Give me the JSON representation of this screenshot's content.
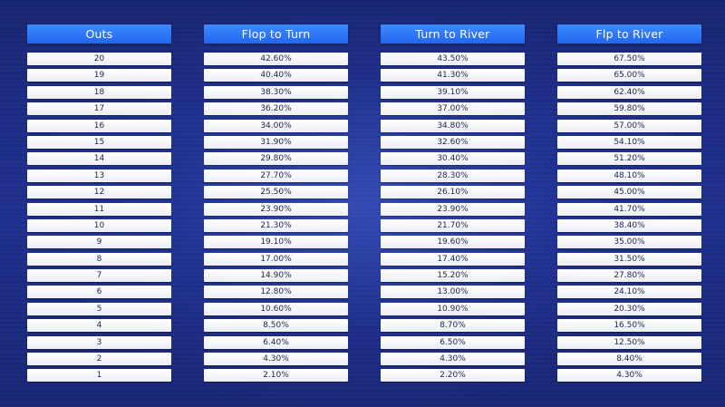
{
  "table": {
    "headers": [
      "Outs",
      "Flop to Turn",
      "Turn to River",
      "Flp to River"
    ],
    "rows": [
      [
        "20",
        "42.60%",
        "43.50%",
        "67.50%"
      ],
      [
        "19",
        "40.40%",
        "41.30%",
        "65.00%"
      ],
      [
        "18",
        "38.30%",
        "39.10%",
        "62.40%"
      ],
      [
        "17",
        "36.20%",
        "37.00%",
        "59.80%"
      ],
      [
        "16",
        "34.00%",
        "34.80%",
        "57.00%"
      ],
      [
        "15",
        "31.90%",
        "32.60%",
        "54.10%"
      ],
      [
        "14",
        "29.80%",
        "30.40%",
        "51.20%"
      ],
      [
        "13",
        "27.70%",
        "28.30%",
        "48.10%"
      ],
      [
        "12",
        "25.50%",
        "26.10%",
        "45.00%"
      ],
      [
        "11",
        "23.90%",
        "23.90%",
        "41.70%"
      ],
      [
        "10",
        "21.30%",
        "21.70%",
        "38.40%"
      ],
      [
        "9",
        "19.10%",
        "19.60%",
        "35.00%"
      ],
      [
        "8",
        "17.00%",
        "17.40%",
        "31.50%"
      ],
      [
        "7",
        "14.90%",
        "15.20%",
        "27.80%"
      ],
      [
        "6",
        "12.80%",
        "13.00%",
        "24.10%"
      ],
      [
        "5",
        "10.60%",
        "10.90%",
        "20.30%"
      ],
      [
        "4",
        "8.50%",
        "8.70%",
        "16.50%"
      ],
      [
        "3",
        "6.40%",
        "6.50%",
        "12.50%"
      ],
      [
        "2",
        "4.30%",
        "4.30%",
        "8.40%"
      ],
      [
        "1",
        "2.10%",
        "2.20%",
        "4.30%"
      ]
    ]
  },
  "colors": {
    "background": "#1d2d86",
    "header": "#2a72f5",
    "cell": "#f4f5f9",
    "cell_text": "#1a2550"
  }
}
